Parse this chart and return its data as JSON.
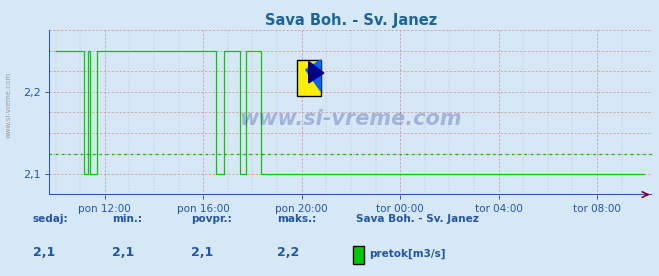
{
  "title": "Sava Boh. - Sv. Janez",
  "title_color": "#1a6699",
  "bg_color": "#d6e8f5",
  "plot_bg_color": "#d6e8f5",
  "line_color": "#00cc00",
  "avg_line_color": "#00bb00",
  "avg_value": 2.125,
  "ymin": 2.075,
  "ymax": 2.275,
  "yticks": [
    2.1,
    2.2
  ],
  "grid_color_h": "#cc7777",
  "grid_color_v": "#cc7777",
  "axis_color": "#2255cc",
  "tick_color": "#2255aa",
  "footer_label_color": "#2255aa",
  "sedaj": "2,1",
  "min_val": "2,1",
  "povpr": "2,1",
  "maks": "2,2",
  "station": "Sava Boh. - Sv. Janez",
  "legend_label": "pretok[m3/s]",
  "xtick_labels": [
    "pon 12:00",
    "pon 16:00",
    "pon 20:00",
    "tor 00:00",
    "tor 04:00",
    "tor 08:00"
  ],
  "watermark": "www.si-vreme.com",
  "watermark_color": "#1a3399",
  "n_points": 288,
  "spike_data": [
    [
      0,
      14,
      2.25
    ],
    [
      14,
      16,
      2.1
    ],
    [
      16,
      17,
      2.25
    ],
    [
      17,
      18,
      2.1
    ],
    [
      20,
      78,
      2.25
    ],
    [
      78,
      80,
      2.1
    ],
    [
      82,
      90,
      2.25
    ],
    [
      90,
      91,
      2.1
    ],
    [
      93,
      100,
      2.25
    ],
    [
      100,
      288,
      2.1
    ]
  ]
}
